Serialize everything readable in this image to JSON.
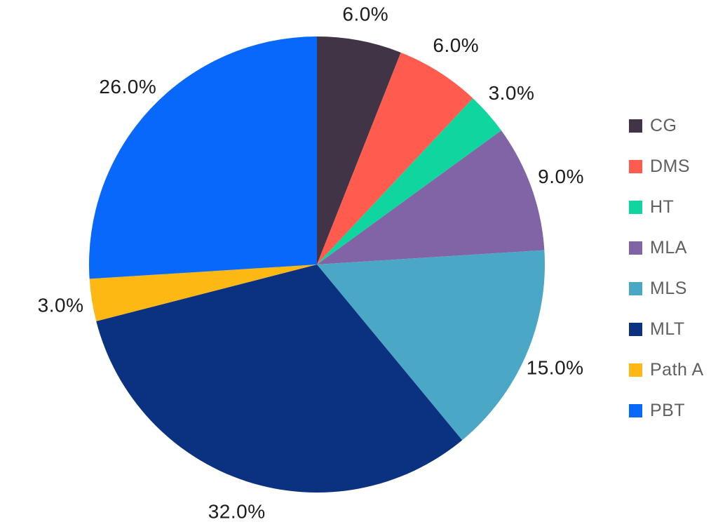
{
  "chart_data": {
    "type": "pie",
    "title": "",
    "background": "#ffffff",
    "direction": "clockwise",
    "start_angle_deg": 0,
    "categories": [
      "CG",
      "DMS",
      "HT",
      "MLA",
      "MLS",
      "MLT",
      "Path A",
      "PBT"
    ],
    "values": [
      6.0,
      6.0,
      3.0,
      9.0,
      15.0,
      32.0,
      3.0,
      26.0
    ],
    "percent_labels": [
      "6.0%",
      "6.0%",
      "3.0%",
      "9.0%",
      "15.0%",
      "32.0%",
      "3.0%",
      "26.0%"
    ],
    "colors": [
      "#413447",
      "#FF5B4F",
      "#0ED69E",
      "#8164A5",
      "#4BA7C6",
      "#0A3280",
      "#FDB813",
      "#0768FB"
    ],
    "label_color": "#1c1c1c",
    "legend": {
      "position": "right",
      "text_color": "#606060",
      "entries": [
        "CG",
        "DMS",
        "HT",
        "MLA",
        "MLS",
        "MLT",
        "Path A",
        "PBT"
      ]
    }
  }
}
